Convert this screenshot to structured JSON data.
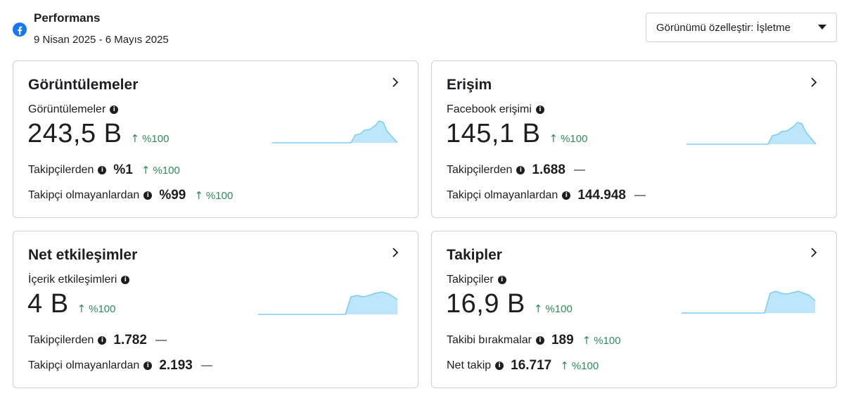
{
  "header": {
    "title": "Performans",
    "date_range": "9 Nisan 2025 - 6 Mayıs 2025",
    "customize_button": "Görünümü özelleştir: İşletme",
    "brand_color": "#1877f2"
  },
  "cards": [
    {
      "title": "Görüntülemeler",
      "metric_label": "Görüntülemeler",
      "metric_value": "243,5 B",
      "metric_change": "%100",
      "rows": [
        {
          "label": "Takipçilerden",
          "value": "%1",
          "change": "%100"
        },
        {
          "label": "Takipçi olmayanlardan",
          "value": "%99",
          "change": "%100"
        }
      ]
    },
    {
      "title": "Erişim",
      "metric_label": "Facebook erişimi",
      "metric_value": "145,1 B",
      "metric_change": "%100",
      "rows": [
        {
          "label": "Takipçilerden",
          "value": "1.688",
          "change": "—"
        },
        {
          "label": "Takipçi olmayanlardan",
          "value": "144.948",
          "change": "—"
        }
      ]
    },
    {
      "title": "Net etkileşimler",
      "metric_label": "İçerik etkileşimleri",
      "metric_value": "4 B",
      "metric_change": "%100",
      "rows": [
        {
          "label": "Takipçilerden",
          "value": "1.782",
          "change": "—"
        },
        {
          "label": "Takipçi olmayanlardan",
          "value": "2.193",
          "change": "—"
        }
      ]
    },
    {
      "title": "Takipler",
      "metric_label": "Takipçiler",
      "metric_value": "16,9 B",
      "metric_change": "%100",
      "rows": [
        {
          "label": "Takibi bırakmalar",
          "value": "189",
          "change": "%100"
        },
        {
          "label": "Net takip",
          "value": "16.717",
          "change": "%100"
        }
      ]
    }
  ],
  "colors": {
    "positive_change": "#2e8b57",
    "sparkline_fill": "#bde6fb",
    "sparkline_stroke": "#78cdf0"
  }
}
